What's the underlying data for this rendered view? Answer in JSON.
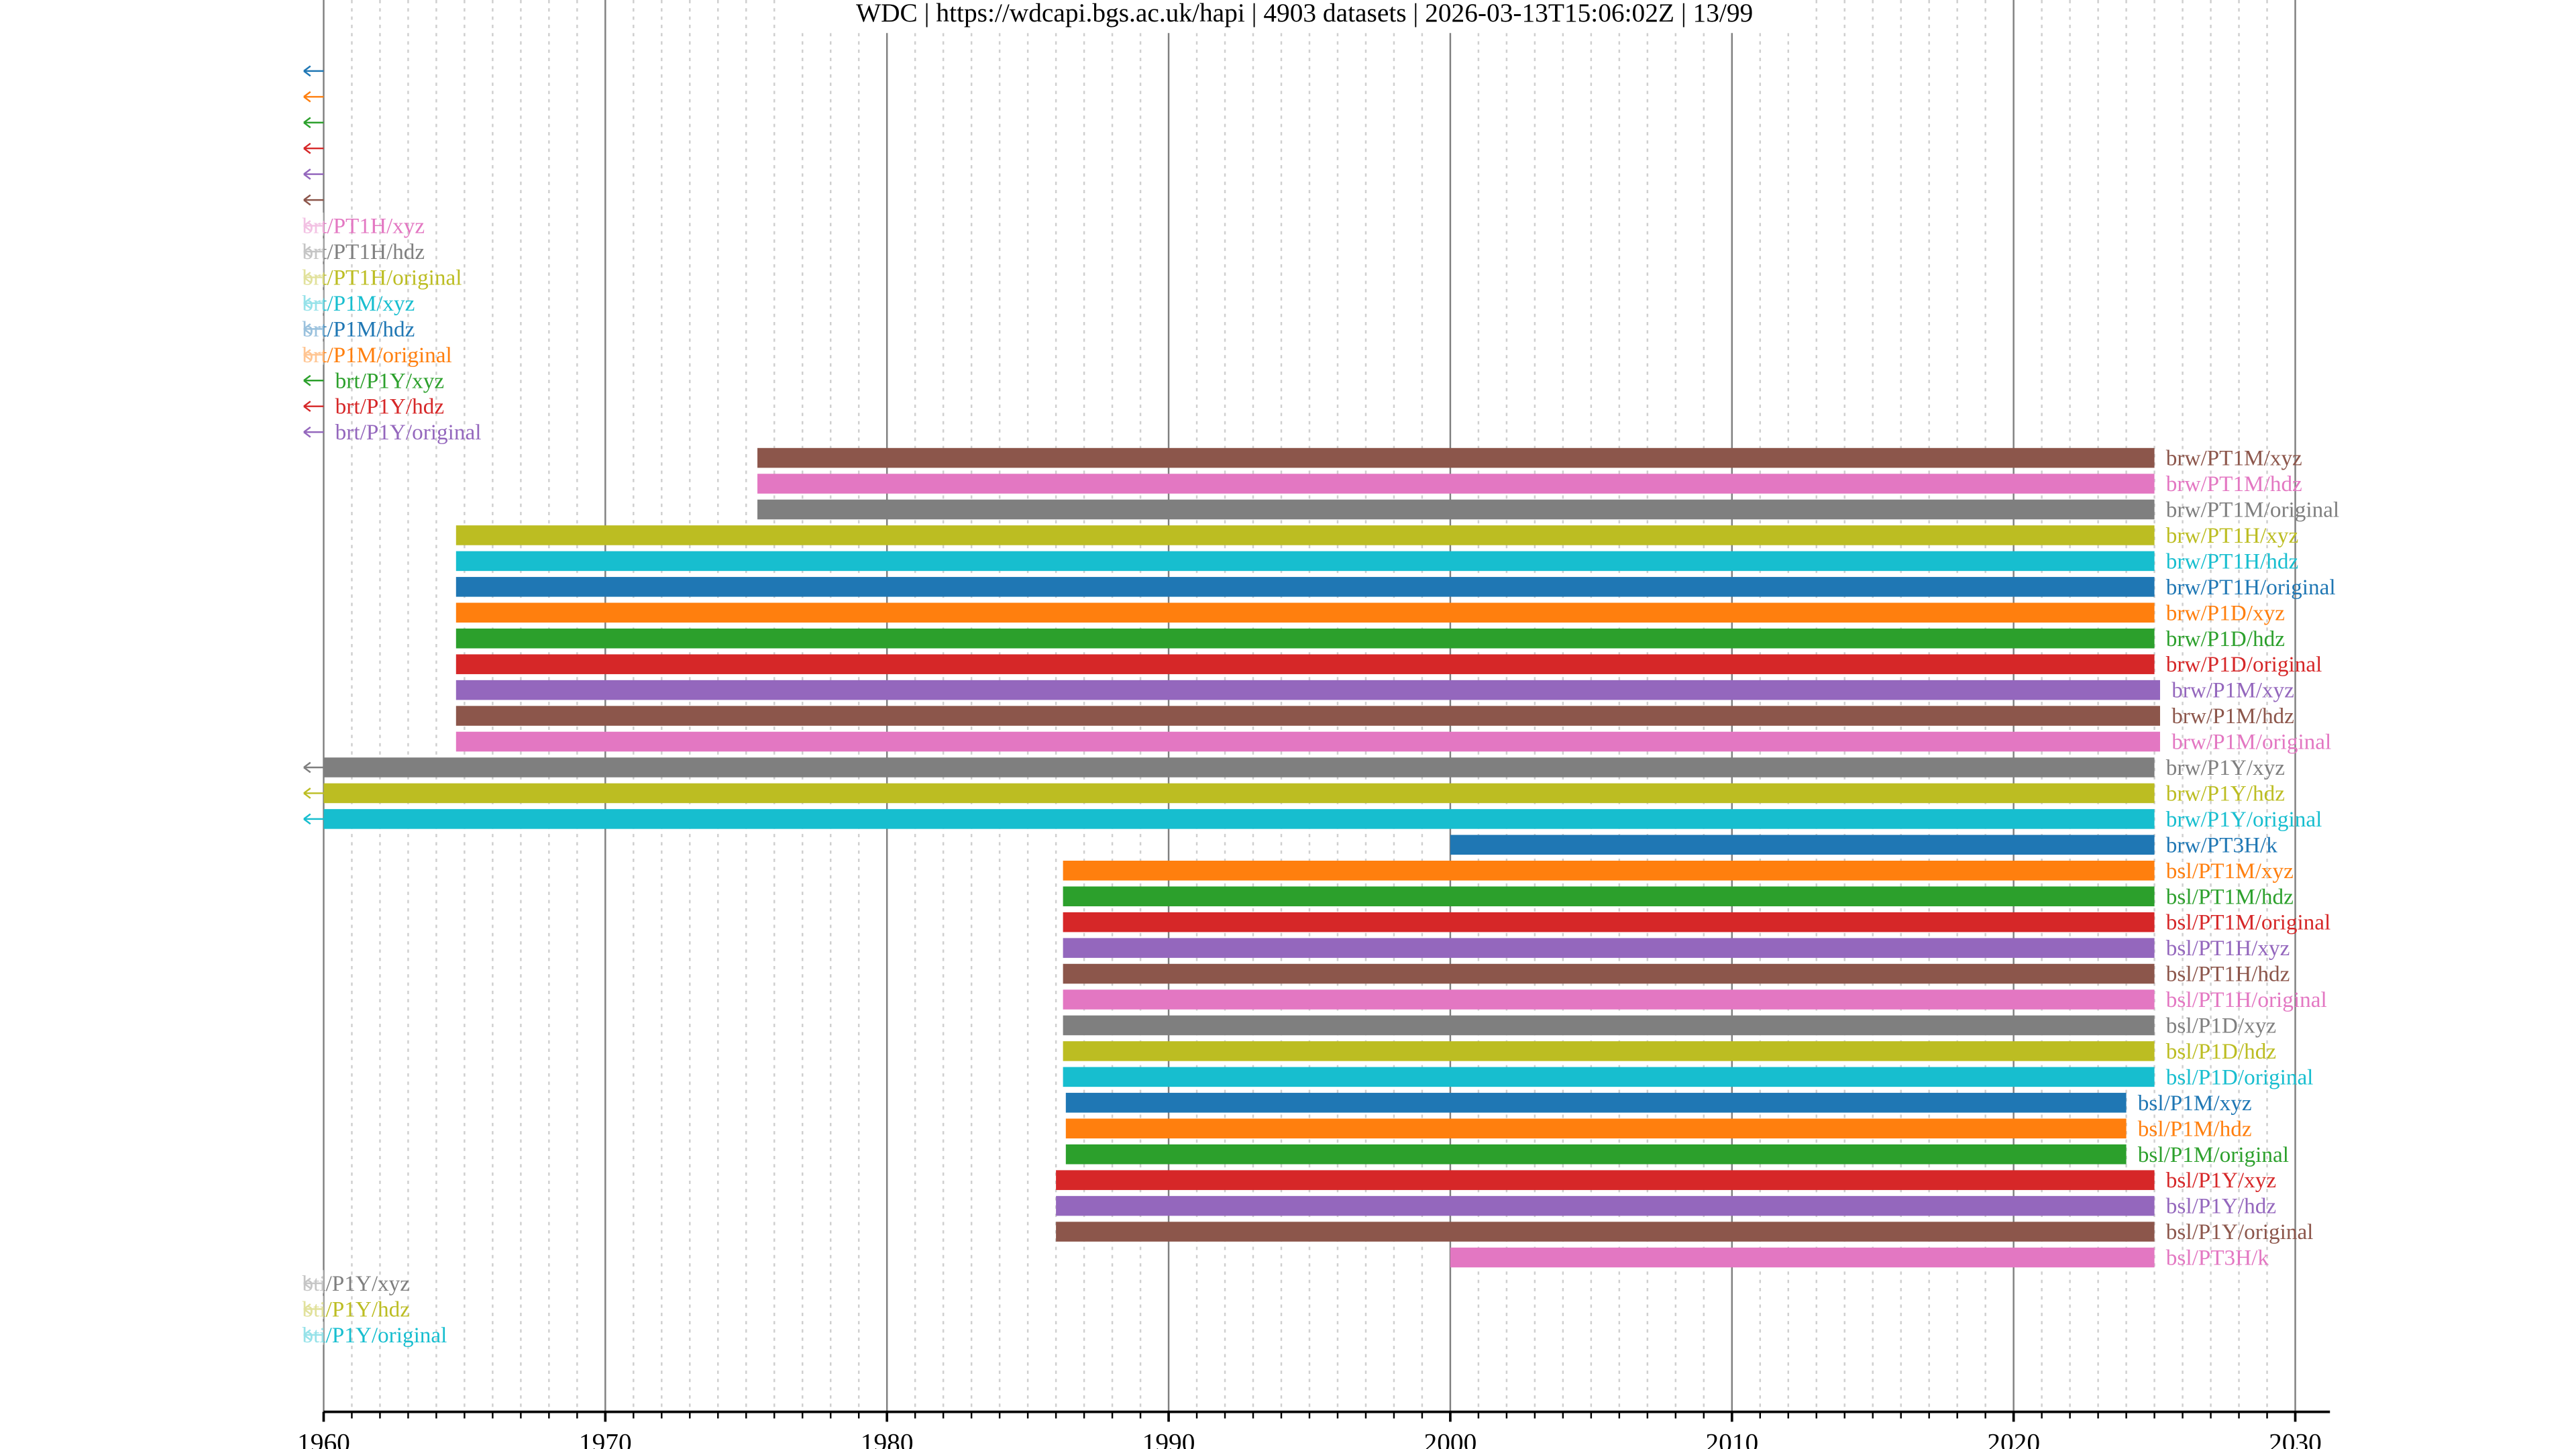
{
  "chart_data": {
    "type": "timeline",
    "title": "WDC | https://wdcapi.bgs.ac.uk/hapi | 4903 datasets | 2026-03-13T15:06:02Z | 13/99",
    "xlim": [
      1960,
      2030
    ],
    "x_ticks": [
      "1960",
      "1970",
      "1980",
      "1990",
      "2000",
      "2010",
      "2020",
      "2030"
    ],
    "grid": {
      "major": "decade",
      "minor": "year"
    },
    "palette": [
      "#1f77b4",
      "#ff7f0e",
      "#2ca02c",
      "#d62728",
      "#9467bd",
      "#8c564b",
      "#e377c2",
      "#7f7f7f",
      "#bcbd22",
      "#17becf"
    ],
    "rows": [
      {
        "label": null,
        "start": null,
        "end": null,
        "truncated_left": true
      },
      {
        "label": null,
        "start": null,
        "end": null,
        "truncated_left": true
      },
      {
        "label": null,
        "start": null,
        "end": null,
        "truncated_left": true
      },
      {
        "label": null,
        "start": null,
        "end": null,
        "truncated_left": true
      },
      {
        "label": null,
        "start": null,
        "end": null,
        "truncated_left": true
      },
      {
        "label": null,
        "start": null,
        "end": null,
        "truncated_left": true
      },
      {
        "label": "brt/PT1H/xyz",
        "start": null,
        "end": null,
        "truncated_left": true
      },
      {
        "label": "brt/PT1H/hdz",
        "start": null,
        "end": null,
        "truncated_left": true
      },
      {
        "label": "brt/PT1H/original",
        "start": null,
        "end": null,
        "truncated_left": true
      },
      {
        "label": "brt/P1M/xyz",
        "start": null,
        "end": null,
        "truncated_left": true
      },
      {
        "label": "brt/P1M/hdz",
        "start": null,
        "end": null,
        "truncated_left": true
      },
      {
        "label": "brt/P1M/original",
        "start": null,
        "end": null,
        "truncated_left": true
      },
      {
        "label": "brt/P1Y/xyz",
        "start": null,
        "end": null,
        "truncated_left": true
      },
      {
        "label": "brt/P1Y/hdz",
        "start": null,
        "end": null,
        "truncated_left": true
      },
      {
        "label": "brt/P1Y/original",
        "start": null,
        "end": null,
        "truncated_left": true
      },
      {
        "label": "brw/PT1M/xyz",
        "start": 1975.4,
        "end": 2025.0
      },
      {
        "label": "brw/PT1M/hdz",
        "start": 1975.4,
        "end": 2025.0
      },
      {
        "label": "brw/PT1M/original",
        "start": 1975.4,
        "end": 2025.0
      },
      {
        "label": "brw/PT1H/xyz",
        "start": 1964.7,
        "end": 2025.0
      },
      {
        "label": "brw/PT1H/hdz",
        "start": 1964.7,
        "end": 2025.0
      },
      {
        "label": "brw/PT1H/original",
        "start": 1964.7,
        "end": 2025.0
      },
      {
        "label": "brw/P1D/xyz",
        "start": 1964.7,
        "end": 2025.0
      },
      {
        "label": "brw/P1D/hdz",
        "start": 1964.7,
        "end": 2025.0
      },
      {
        "label": "brw/P1D/original",
        "start": 1964.7,
        "end": 2025.0
      },
      {
        "label": "brw/P1M/xyz",
        "start": 1964.7,
        "end": 2025.2
      },
      {
        "label": "brw/P1M/hdz",
        "start": 1964.7,
        "end": 2025.2
      },
      {
        "label": "brw/P1M/original",
        "start": 1964.7,
        "end": 2025.2
      },
      {
        "label": "brw/P1Y/xyz",
        "start": 1960,
        "end": 2025.0,
        "truncated_left": true
      },
      {
        "label": "brw/P1Y/hdz",
        "start": 1960,
        "end": 2025.0,
        "truncated_left": true
      },
      {
        "label": "brw/P1Y/original",
        "start": 1960,
        "end": 2025.0,
        "truncated_left": true
      },
      {
        "label": "brw/PT3H/k",
        "start": 2000.0,
        "end": 2025.0
      },
      {
        "label": "bsl/PT1M/xyz",
        "start": 1986.25,
        "end": 2025.0
      },
      {
        "label": "bsl/PT1M/hdz",
        "start": 1986.25,
        "end": 2025.0
      },
      {
        "label": "bsl/PT1M/original",
        "start": 1986.25,
        "end": 2025.0
      },
      {
        "label": "bsl/PT1H/xyz",
        "start": 1986.25,
        "end": 2025.0
      },
      {
        "label": "bsl/PT1H/hdz",
        "start": 1986.25,
        "end": 2025.0
      },
      {
        "label": "bsl/PT1H/original",
        "start": 1986.25,
        "end": 2025.0
      },
      {
        "label": "bsl/P1D/xyz",
        "start": 1986.25,
        "end": 2025.0
      },
      {
        "label": "bsl/P1D/hdz",
        "start": 1986.25,
        "end": 2025.0
      },
      {
        "label": "bsl/P1D/original",
        "start": 1986.25,
        "end": 2025.0
      },
      {
        "label": "bsl/P1M/xyz",
        "start": 1986.35,
        "end": 2024.0
      },
      {
        "label": "bsl/P1M/hdz",
        "start": 1986.35,
        "end": 2024.0
      },
      {
        "label": "bsl/P1M/original",
        "start": 1986.35,
        "end": 2024.0
      },
      {
        "label": "bsl/P1Y/xyz",
        "start": 1986.0,
        "end": 2025.0
      },
      {
        "label": "bsl/P1Y/hdz",
        "start": 1986.0,
        "end": 2025.0
      },
      {
        "label": "bsl/P1Y/original",
        "start": 1986.0,
        "end": 2025.0
      },
      {
        "label": "bsl/PT3H/k",
        "start": 2000.0,
        "end": 2025.0
      },
      {
        "label": "bti/P1Y/xyz",
        "start": null,
        "end": null,
        "truncated_left": true
      },
      {
        "label": "bti/P1Y/hdz",
        "start": null,
        "end": null,
        "truncated_left": true
      },
      {
        "label": "bti/P1Y/original",
        "start": null,
        "end": null,
        "truncated_left": true
      }
    ]
  }
}
